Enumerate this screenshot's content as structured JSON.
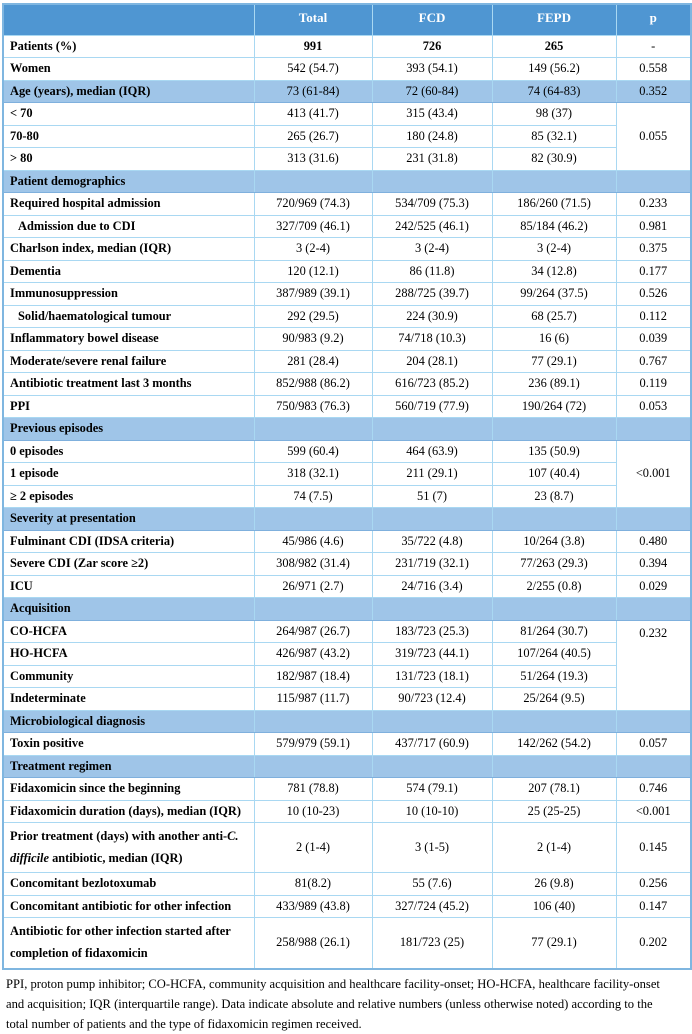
{
  "colors": {
    "header_bg": "#4f96d2",
    "header_text": "#ffffff",
    "band_bg": "#9fc5e8",
    "grid_line": "#a9d8f2",
    "outer_border": "#7fb6e0"
  },
  "table": {
    "columns": [
      "",
      "Total",
      "FCD",
      "FEPD",
      "p"
    ],
    "rows": [
      {
        "type": "data",
        "label": "Patients (%)",
        "values": [
          "991",
          "726",
          "265"
        ],
        "p": "-",
        "values_bold": true
      },
      {
        "type": "data",
        "label": "Women",
        "values": [
          "542 (54.7)",
          "393 (54.1)",
          "149 (56.2)"
        ],
        "p": "0.558"
      },
      {
        "type": "data",
        "label": "Age (years), median (IQR)",
        "values": [
          "73 (61-84)",
          "72 (60-84)",
          "74 (64-83)"
        ],
        "p": "0.352",
        "highlight": true
      },
      {
        "type": "data",
        "label": "< 70",
        "values": [
          "413 (41.7)",
          "315 (43.4)",
          "98 (37)"
        ],
        "p": "0.055",
        "p_rowspan": 3
      },
      {
        "type": "data",
        "label": "70-80",
        "values": [
          "265 (26.7)",
          "180 (24.8)",
          "85 (32.1)"
        ],
        "p": null
      },
      {
        "type": "data",
        "label": "> 80",
        "values": [
          "313 (31.6)",
          "231 (31.8)",
          "82 (30.9)"
        ],
        "p": null
      },
      {
        "type": "section",
        "label": "Patient demographics"
      },
      {
        "type": "data",
        "label": "Required hospital admission",
        "values": [
          "720/969 (74.3)",
          "534/709 (75.3)",
          "186/260 (71.5)"
        ],
        "p": "0.233"
      },
      {
        "type": "data",
        "label": "Admission due to CDI",
        "indent": true,
        "values": [
          "327/709 (46.1)",
          "242/525 (46.1)",
          "85/184 (46.2)"
        ],
        "p": "0.981"
      },
      {
        "type": "data",
        "label": "Charlson index, median (IQR)",
        "values": [
          "3 (2-4)",
          "3 (2-4)",
          "3 (2-4)"
        ],
        "p": "0.375"
      },
      {
        "type": "data",
        "label": "Dementia",
        "values": [
          "120 (12.1)",
          "86 (11.8)",
          "34 (12.8)"
        ],
        "p": "0.177"
      },
      {
        "type": "data",
        "label": "Immunosuppression",
        "values": [
          "387/989 (39.1)",
          "288/725 (39.7)",
          "99/264 (37.5)"
        ],
        "p": "0.526"
      },
      {
        "type": "data",
        "label": "Solid/haematological tumour",
        "indent": true,
        "values": [
          "292 (29.5)",
          "224 (30.9)",
          "68 (25.7)"
        ],
        "p": "0.112"
      },
      {
        "type": "data",
        "label": "Inflammatory bowel disease",
        "values": [
          "90/983 (9.2)",
          "74/718 (10.3)",
          "16 (6)"
        ],
        "p": "0.039"
      },
      {
        "type": "data",
        "label": "Moderate/severe renal failure",
        "values": [
          "281 (28.4)",
          "204 (28.1)",
          "77 (29.1)"
        ],
        "p": "0.767"
      },
      {
        "type": "data",
        "label": "Antibiotic treatment last 3 months",
        "values": [
          "852/988 (86.2)",
          "616/723 (85.2)",
          "236 (89.1)"
        ],
        "p": "0.119"
      },
      {
        "type": "data",
        "label": "PPI",
        "values": [
          "750/983 (76.3)",
          "560/719 (77.9)",
          "190/264 (72)"
        ],
        "p": "0.053"
      },
      {
        "type": "section",
        "label": "Previous episodes"
      },
      {
        "type": "data",
        "label": "0 episodes",
        "values": [
          "599 (60.4)",
          "464 (63.9)",
          "135 (50.9)"
        ],
        "p": "<0.001",
        "p_rowspan": 3
      },
      {
        "type": "data",
        "label": "1 episode",
        "values": [
          "318 (32.1)",
          "211 (29.1)",
          "107 (40.4)"
        ],
        "p": null
      },
      {
        "type": "data",
        "label": "≥ 2 episodes",
        "values": [
          "74 (7.5)",
          "51 (7)",
          "23 (8.7)"
        ],
        "p": null
      },
      {
        "type": "section",
        "label": "Severity at presentation"
      },
      {
        "type": "data",
        "label": "Fulminant CDI (IDSA criteria)",
        "values": [
          "45/986 (4.6)",
          "35/722 (4.8)",
          "10/264 (3.8)"
        ],
        "p": "0.480"
      },
      {
        "type": "data",
        "label": "Severe CDI (Zar score ≥2)",
        "values": [
          "308/982 (31.4)",
          "231/719 (32.1)",
          "77/263 (29.3)"
        ],
        "p": "0.394"
      },
      {
        "type": "data",
        "label": "ICU",
        "values": [
          "26/971 (2.7)",
          "24/716 (3.4)",
          "2/255 (0.8)"
        ],
        "p": "0.029"
      },
      {
        "type": "section",
        "label": "Acquisition"
      },
      {
        "type": "data",
        "label": "CO-HCFA",
        "values": [
          "264/987 (26.7)",
          "183/723 (25.3)",
          "81/264 (30.7)"
        ],
        "p": "0.232",
        "p_rowspan": 4,
        "p_valign": "top"
      },
      {
        "type": "data",
        "label": "HO-HCFA",
        "values": [
          "426/987 (43.2)",
          "319/723 (44.1)",
          "107/264 (40.5)"
        ],
        "p": null
      },
      {
        "type": "data",
        "label": "Community",
        "values": [
          "182/987 (18.4)",
          "131/723 (18.1)",
          "51/264 (19.3)"
        ],
        "p": null
      },
      {
        "type": "data",
        "label": "Indeterminate",
        "values": [
          "115/987 (11.7)",
          "90/723 (12.4)",
          "25/264 (9.5)"
        ],
        "p": null
      },
      {
        "type": "section",
        "label": "Microbiological diagnosis"
      },
      {
        "type": "data",
        "label": "Toxin positive",
        "values": [
          "579/979 (59.1)",
          "437/717 (60.9)",
          "142/262 (54.2)"
        ],
        "p": "0.057"
      },
      {
        "type": "section",
        "label": "Treatment regimen"
      },
      {
        "type": "data",
        "label": "Fidaxomicin since the beginning",
        "values": [
          "781 (78.8)",
          "574 (79.1)",
          "207 (78.1)"
        ],
        "p": "0.746"
      },
      {
        "type": "data",
        "label": "Fidaxomicin duration (days), median (IQR)",
        "values": [
          "10 (10-23)",
          "10 (10-10)",
          "25 (25-25)"
        ],
        "p": "<0.001"
      },
      {
        "type": "data",
        "wrap": true,
        "label_parts": [
          {
            "text": "Prior treatment (days) with another anti-",
            "italic": false
          },
          {
            "text": "C. difficile",
            "italic": true
          },
          {
            "text": " antibiotic, median (IQR)",
            "italic": false
          }
        ],
        "values": [
          "2 (1-4)",
          "3 (1-5)",
          "2 (1-4)"
        ],
        "p": "0.145"
      },
      {
        "type": "data",
        "label": "Concomitant bezlotoxumab",
        "values": [
          "81(8.2)",
          "55 (7.6)",
          "26 (9.8)"
        ],
        "p": "0.256"
      },
      {
        "type": "data",
        "label": "Concomitant antibiotic for other infection",
        "values": [
          "433/989 (43.8)",
          "327/724 (45.2)",
          "106 (40)"
        ],
        "p": "0.147"
      },
      {
        "type": "data",
        "wrap": true,
        "label": "Antibiotic for other infection started after completion of fidaxomicin",
        "values": [
          "258/988 (26.1)",
          "181/723 (25)",
          "77 (29.1)"
        ],
        "p": "0.202"
      }
    ]
  },
  "footnote": {
    "lines": [
      "PPI, proton pump inhibitor; CO-HCFA, community acquisition and healthcare facility-onset; HO-HCFA, healthcare facility-onset",
      "and acquisition; IQR (interquartile range). Data indicate absolute and relative numbers (unless otherwise noted) according to the",
      "total number of patients and the type of fidaxomicin regimen received."
    ]
  }
}
